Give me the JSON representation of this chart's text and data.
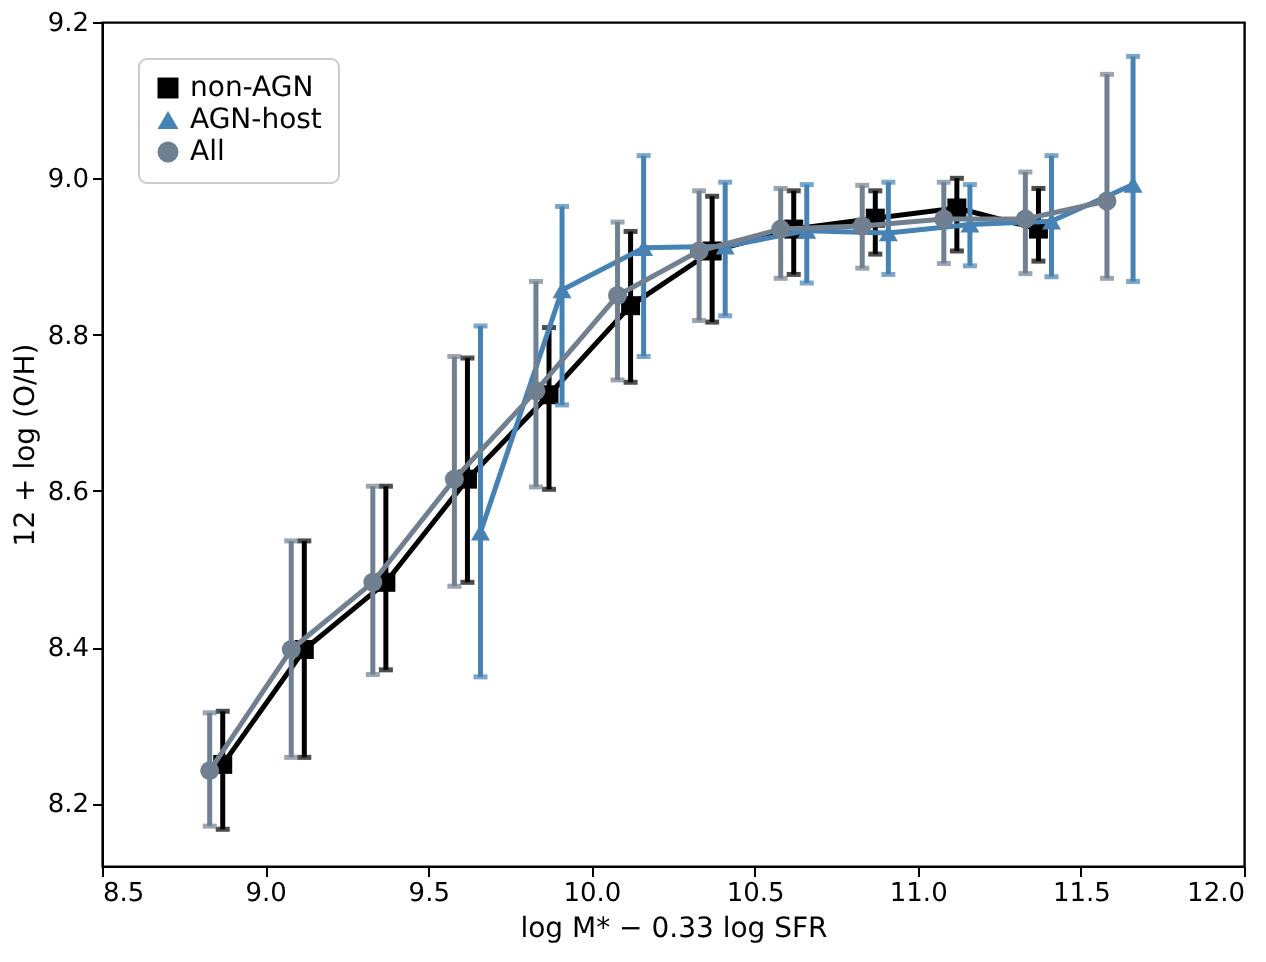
{
  "chart_data": {
    "type": "line",
    "xlabel": "log M* − 0.33 log SFR",
    "ylabel": "12 + log (O/H)",
    "xlim": [
      8.5,
      12.0
    ],
    "xticks": [
      {
        "value": 8.5,
        "label": "8.5"
      },
      {
        "value": 9.0,
        "label": "9.0"
      },
      {
        "value": 9.5,
        "label": "9.5"
      },
      {
        "value": 10.0,
        "label": "10.0"
      },
      {
        "value": 10.5,
        "label": "10.5"
      },
      {
        "value": 11.0,
        "label": "11.0"
      },
      {
        "value": 11.5,
        "label": "11.5"
      },
      {
        "value": 12.0,
        "label": "12.0"
      }
    ],
    "ylim": [
      8.12,
      9.2
    ],
    "yticks": [
      8.2,
      8.4,
      8.6,
      8.8,
      {
        "value": 9.0,
        "label": "9.0"
      },
      9.2
    ],
    "grid": false,
    "legend": "top left",
    "line_style": "solid",
    "series": [
      {
        "name": "non-AGN",
        "color": "#000000",
        "marker": "square",
        "x": [
          8.87,
          9.12,
          9.37,
          9.62,
          9.87,
          10.12,
          10.37,
          10.62,
          10.87,
          11.12,
          11.37
        ],
        "values": [
          8.25,
          8.397,
          8.483,
          8.615,
          8.723,
          8.837,
          8.907,
          8.935,
          8.949,
          8.962,
          8.935
        ],
        "errors": [
          [
            8.167,
            8.318
          ],
          [
            8.259,
            8.536
          ],
          [
            8.371,
            8.606
          ],
          [
            8.483,
            8.77
          ],
          [
            8.602,
            8.809
          ],
          [
            8.739,
            8.932
          ],
          [
            8.816,
            8.977
          ],
          [
            8.877,
            8.984
          ],
          [
            8.903,
            8.984
          ],
          [
            8.907,
            9.0
          ],
          [
            8.894,
            8.987
          ]
        ]
      },
      {
        "name": "AGN-host",
        "color": "#4682b4",
        "marker": "triangle",
        "x": [
          9.66,
          9.91,
          10.16,
          10.41,
          10.66,
          10.91,
          11.16,
          11.41,
          11.66
        ],
        "values": [
          8.547,
          8.857,
          8.911,
          8.913,
          8.933,
          8.93,
          8.941,
          8.945,
          8.992
        ],
        "errors": [
          [
            8.362,
            8.811
          ],
          [
            8.71,
            8.964
          ],
          [
            8.772,
            9.029
          ],
          [
            8.824,
            8.995
          ],
          [
            8.866,
            8.992
          ],
          [
            8.877,
            8.995
          ],
          [
            8.888,
            8.992
          ],
          [
            8.874,
            9.029
          ],
          [
            8.868,
            9.156
          ]
        ]
      },
      {
        "name": "All",
        "color": "#708090",
        "marker": "circle",
        "x": [
          8.83,
          9.08,
          9.33,
          9.58,
          9.83,
          10.08,
          10.33,
          10.58,
          10.83,
          11.08,
          11.33,
          11.58
        ],
        "values": [
          8.242,
          8.397,
          8.483,
          8.615,
          8.728,
          8.85,
          8.907,
          8.935,
          8.939,
          8.948,
          8.948,
          8.971
        ],
        "errors": [
          [
            8.171,
            8.316
          ],
          [
            8.259,
            8.536
          ],
          [
            8.365,
            8.606
          ],
          [
            8.478,
            8.772
          ],
          [
            8.605,
            8.868
          ],
          [
            8.742,
            8.944
          ],
          [
            8.818,
            8.984
          ],
          [
            8.872,
            8.987
          ],
          [
            8.885,
            8.991
          ],
          [
            8.891,
            8.995
          ],
          [
            8.878,
            9.008
          ],
          [
            8.872,
            9.133
          ]
        ]
      }
    ]
  }
}
